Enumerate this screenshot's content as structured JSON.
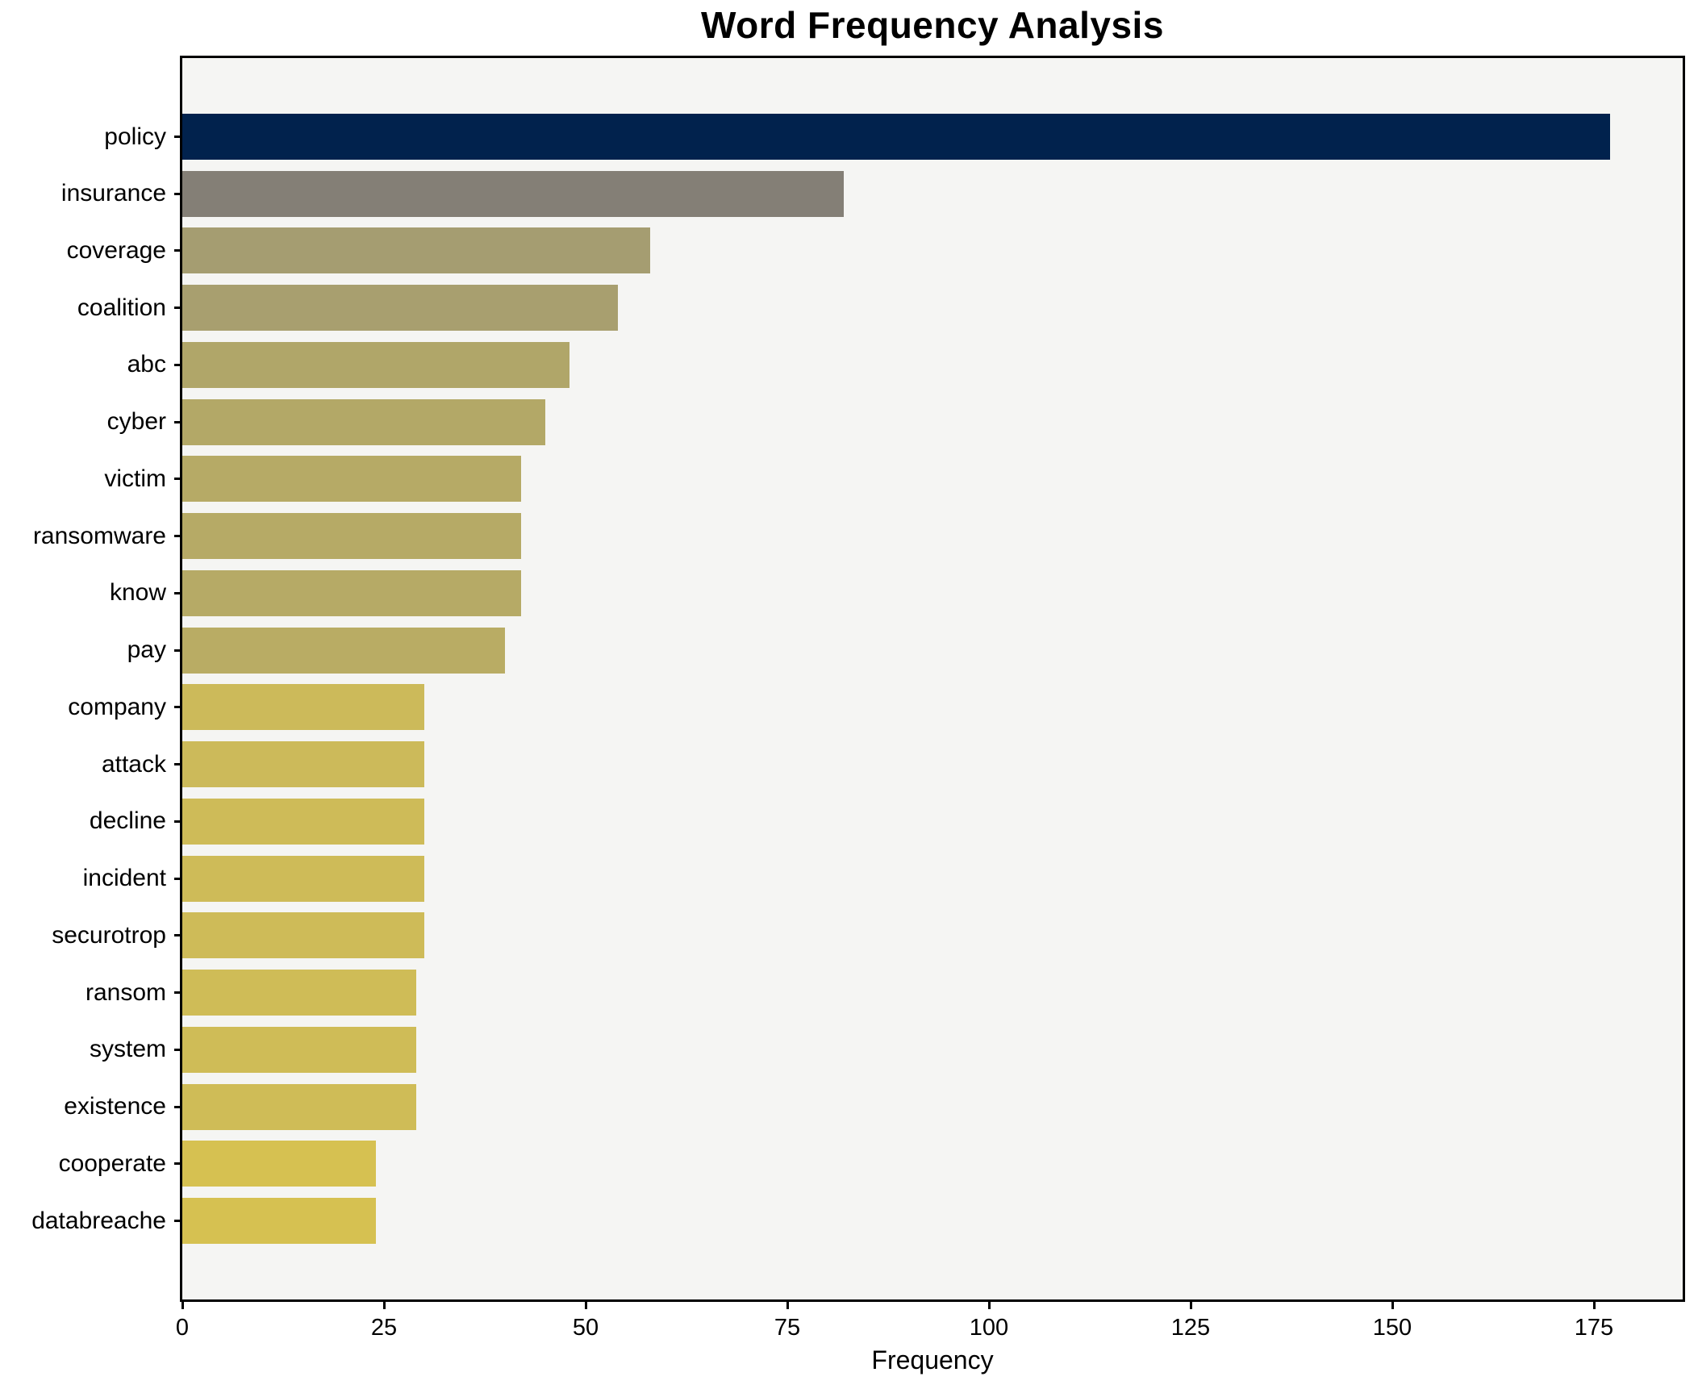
{
  "title": "Word Frequency Analysis",
  "chart_data": {
    "type": "bar",
    "orientation": "horizontal",
    "title": "Word Frequency Analysis",
    "xlabel": "Frequency",
    "ylabel": "",
    "categories": [
      "policy",
      "insurance",
      "coverage",
      "coalition",
      "abc",
      "cyber",
      "victim",
      "ransomware",
      "know",
      "pay",
      "company",
      "attack",
      "decline",
      "incident",
      "securotrop",
      "ransom",
      "system",
      "existence",
      "cooperate",
      "databreache"
    ],
    "values": [
      177,
      82,
      58,
      54,
      48,
      45,
      42,
      42,
      42,
      40,
      30,
      30,
      30,
      30,
      30,
      29,
      29,
      29,
      24,
      24
    ],
    "bar_colors": [
      "#01224d",
      "#847f76",
      "#a59d71",
      "#a89f6f",
      "#b0a669",
      "#b3a867",
      "#b6aa66",
      "#b6aa66",
      "#b6aa66",
      "#b9ac64",
      "#ccba5a",
      "#ccba5a",
      "#cebb58",
      "#cebb58",
      "#cebb58",
      "#cfbc57",
      "#cfbc57",
      "#cfbc57",
      "#d6c151",
      "#d6c151"
    ],
    "x_ticks": [
      0,
      25,
      50,
      75,
      100,
      125,
      150,
      175
    ],
    "xlim": [
      0,
      186
    ],
    "grid": false,
    "legend": "none",
    "plot_background": "#f5f5f3",
    "figure_background": "#ffffff",
    "spine_color": "#000000",
    "text_color": "#000000"
  }
}
